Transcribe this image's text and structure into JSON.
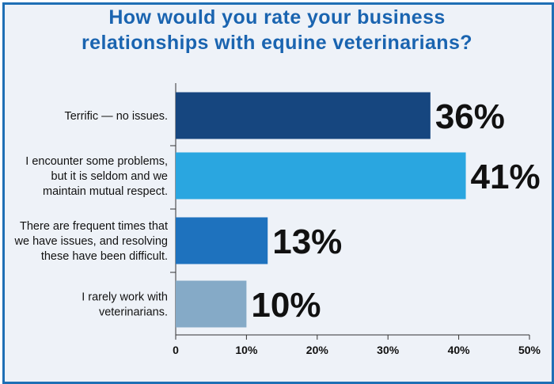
{
  "chart_data": {
    "type": "bar",
    "orientation": "horizontal",
    "title": "How would you rate your business relationships with equine veterinarians?",
    "title_lines": [
      "How would you rate your business",
      "relationships with equine veterinarians?"
    ],
    "categories": [
      "Terrific — no issues.",
      "I encounter some problems, but it is seldom and we maintain mutual respect.",
      "There are frequent times that we have issues, and resolving these have been difficult.",
      "I rarely work with veterinarians."
    ],
    "category_lines": [
      [
        "Terrific — no issues."
      ],
      [
        "I encounter some problems,",
        "but it is seldom and we",
        "maintain mutual respect."
      ],
      [
        "There are frequent times that",
        "we have issues, and resolving",
        "these have been difficult."
      ],
      [
        "I rarely work with",
        "veterinarians."
      ]
    ],
    "values": [
      36,
      41,
      13,
      10
    ],
    "value_labels": [
      "36%",
      "41%",
      "13%",
      "10%"
    ],
    "colors": [
      "#16467f",
      "#2aa6e0",
      "#1e72be",
      "#85aac7"
    ],
    "xlim": [
      0,
      50
    ],
    "xticks": [
      0,
      10,
      20,
      30,
      40,
      50
    ],
    "xtick_labels": [
      "0",
      "10%",
      "20%",
      "30%",
      "40%",
      "50%"
    ],
    "grid": false,
    "legend": "none"
  },
  "colors": {
    "title": "#1a64b0",
    "border": "#1e6fb5",
    "background": "#eef2f8"
  }
}
